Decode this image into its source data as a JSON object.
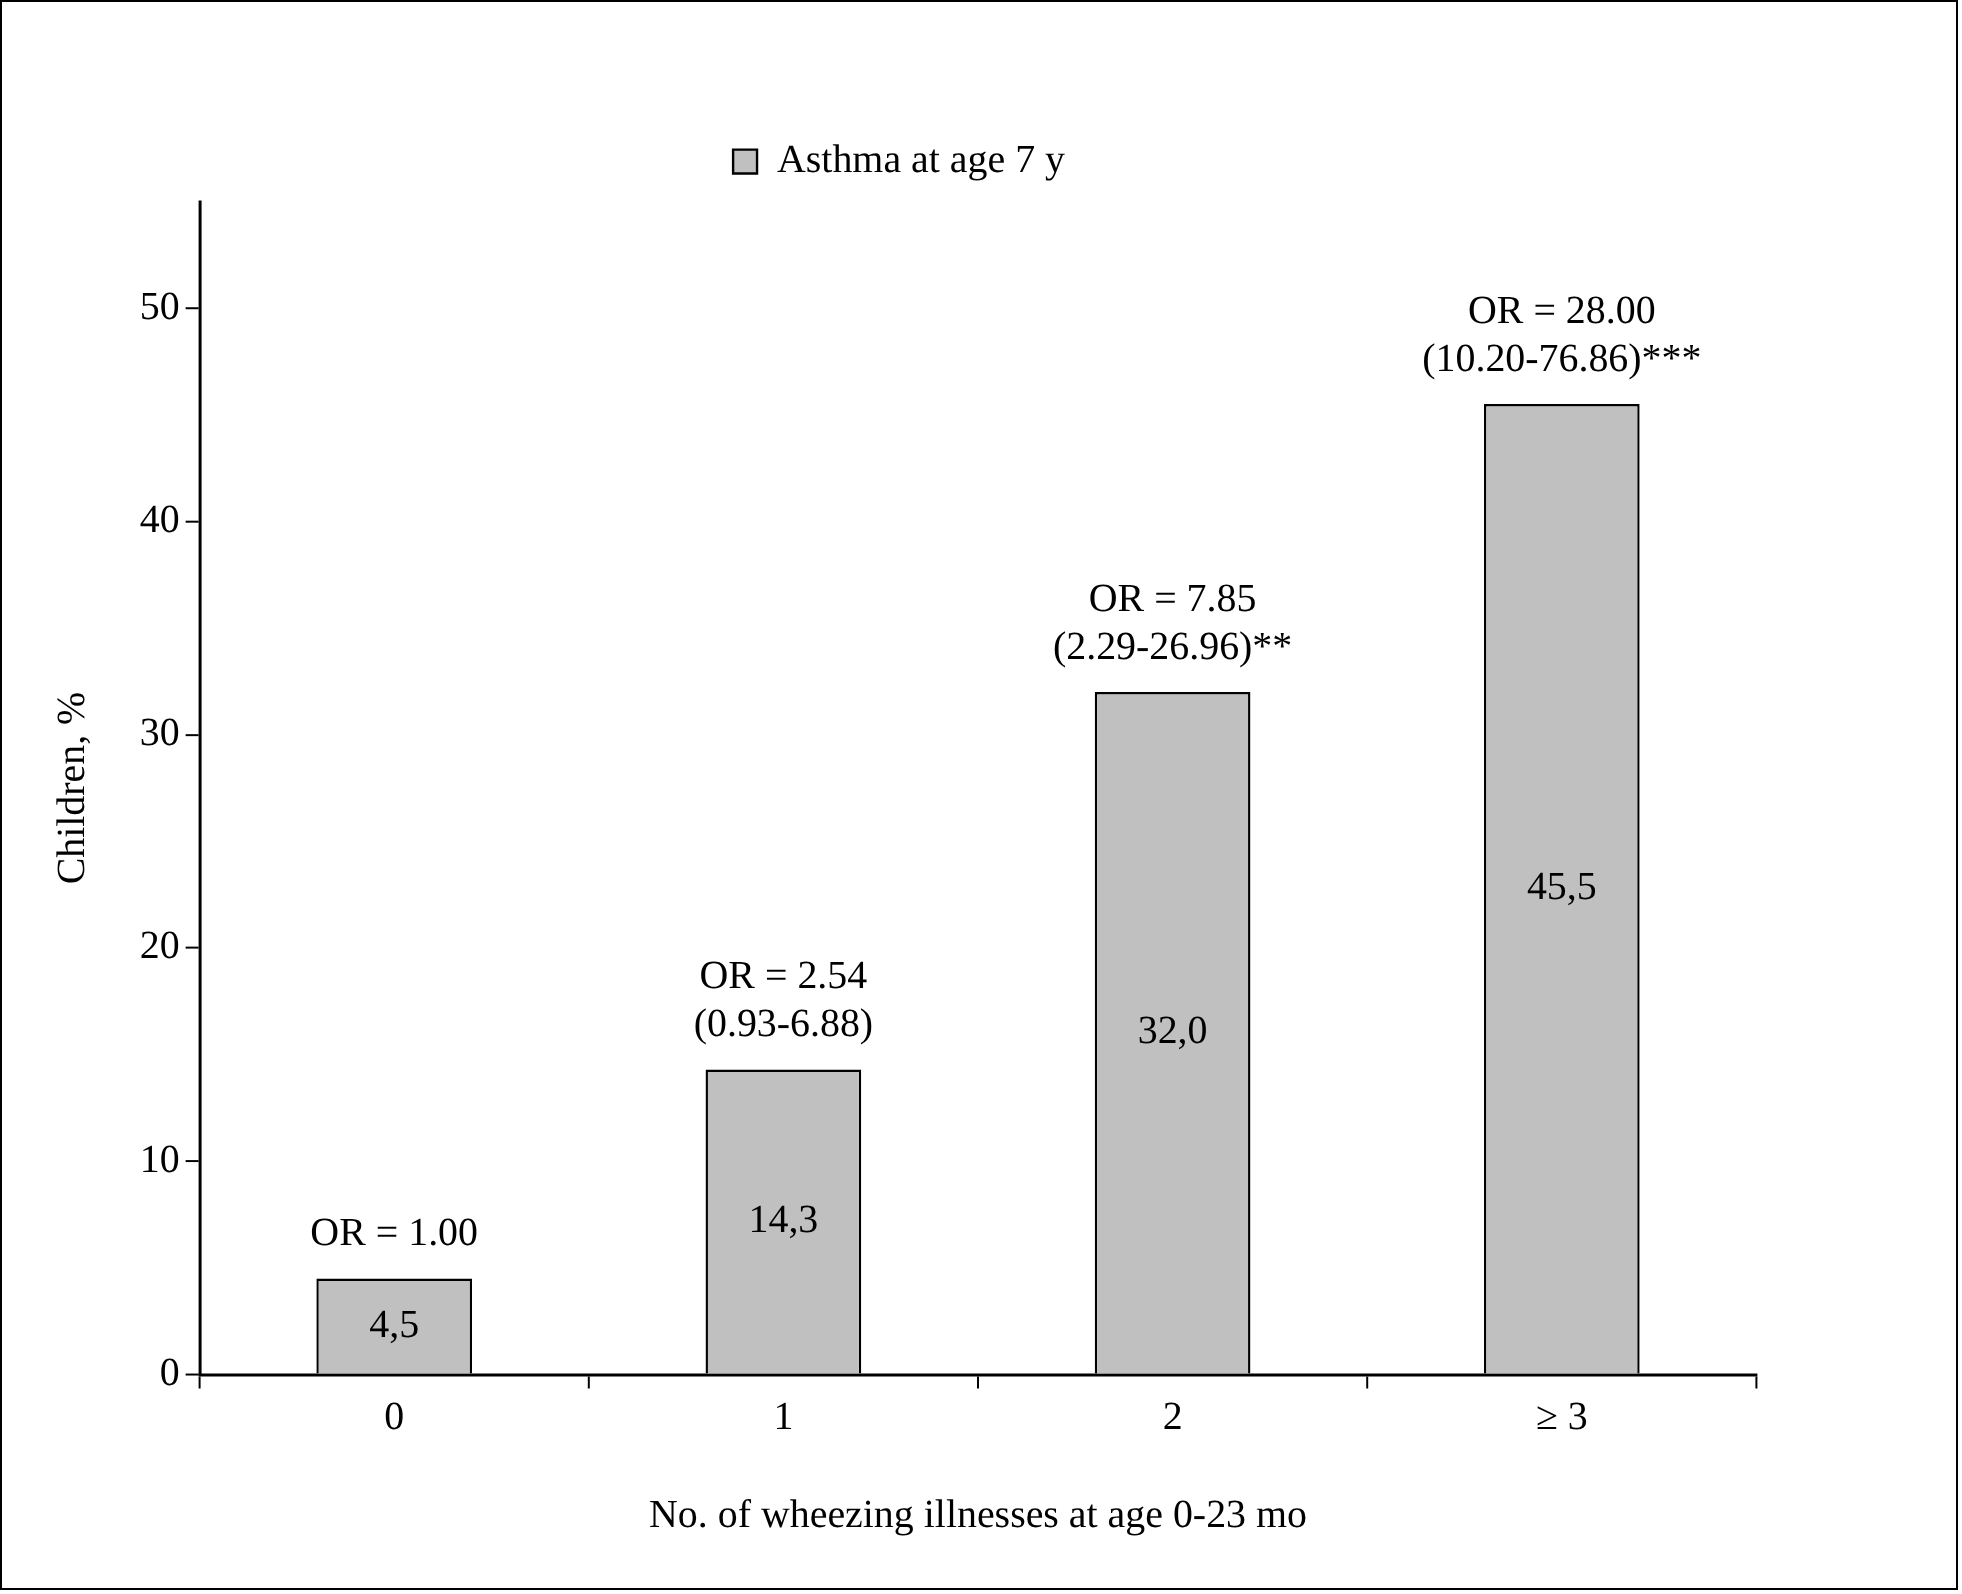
{
  "chart_data": {
    "type": "bar",
    "xlabel": "No. of wheezing illnesses at age 0-23 mo",
    "ylabel": "Children, %",
    "categories": [
      "0",
      "1",
      "2",
      "≥ 3"
    ],
    "series": [
      {
        "name": "Asthma at age 7 y",
        "color": "#c0c0c0",
        "values": [
          4.5,
          14.3,
          32.0,
          45.5
        ],
        "value_labels": [
          "4,5",
          "14,3",
          "32,0",
          "45,5"
        ]
      }
    ],
    "ylim": [
      0,
      55
    ],
    "yticks": [
      0,
      10,
      20,
      30,
      40,
      50
    ],
    "grid": false,
    "legend": "top",
    "annotations": [
      {
        "text": "OR = 1.00",
        "x": "0",
        "y": 4.5
      },
      {
        "text": "OR = 2.54\n(0.93-6.88)",
        "x": "1",
        "y": 14.3
      },
      {
        "text": "OR = 7.85\n(2.29-26.96)**",
        "x": "2",
        "y": 32.0
      },
      {
        "text": "OR = 28.00\n(10.20-76.86)***",
        "x": "≥ 3",
        "y": 45.5
      }
    ]
  }
}
